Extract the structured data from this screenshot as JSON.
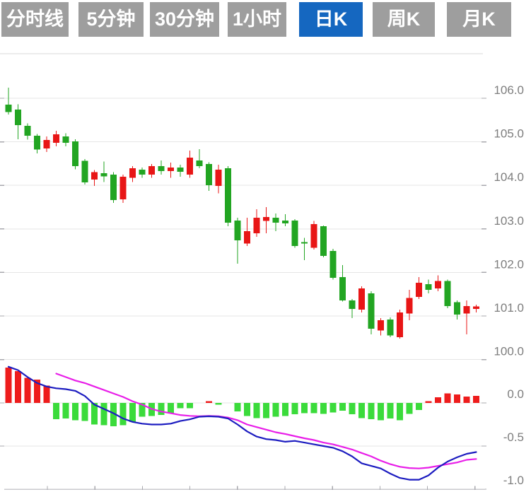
{
  "tabs": {
    "items": [
      {
        "name": "tab-timeline",
        "label": "分时线",
        "active": false
      },
      {
        "name": "tab-5min",
        "label": "5分钟",
        "active": false
      },
      {
        "name": "tab-30min",
        "label": "30分钟",
        "active": false
      },
      {
        "name": "tab-1hour",
        "label": "1小时",
        "active": false
      },
      {
        "name": "tab-daily-k",
        "label": "日K",
        "active": true
      },
      {
        "name": "tab-weekly-k",
        "label": "周K",
        "active": false
      },
      {
        "name": "tab-monthly-k",
        "label": "月K",
        "active": false
      }
    ],
    "colors": {
      "active_bg": "#1567c0",
      "inactive_bg": "#9e9e9e",
      "text": "#ffffff"
    }
  },
  "chart_data": {
    "type": "candlestick+macd",
    "title": "",
    "legend": "none",
    "grid": "horizontal-only",
    "price_pane": {
      "axis_side": "right",
      "tick_labels": [
        "106.0",
        "105.0",
        "104.0",
        "103.0",
        "102.0",
        "101.0",
        "100.0"
      ],
      "tick_values": [
        106.0,
        105.0,
        104.0,
        103.0,
        102.0,
        101.0,
        100.0
      ],
      "ylim": [
        100.0,
        106.0
      ]
    },
    "macd_pane": {
      "axis_side": "right",
      "tick_labels": [
        "0.0",
        "-0.5",
        "-1.0"
      ],
      "tick_values": [
        0.0,
        -0.5,
        -1.0
      ],
      "ylim": [
        -1.0,
        0.5
      ]
    },
    "candles_ohlc": [
      [
        105.85,
        106.24,
        105.63,
        105.68
      ],
      [
        105.74,
        105.86,
        105.06,
        105.38
      ],
      [
        105.37,
        105.42,
        105.05,
        105.14
      ],
      [
        105.14,
        105.18,
        104.73,
        104.82
      ],
      [
        104.85,
        105.12,
        104.77,
        105.04
      ],
      [
        104.98,
        105.25,
        104.9,
        105.17
      ],
      [
        105.12,
        105.2,
        104.9,
        104.98
      ],
      [
        105.01,
        105.06,
        104.37,
        104.44
      ],
      [
        104.56,
        104.6,
        104.02,
        104.07
      ],
      [
        104.13,
        104.35,
        103.99,
        104.3
      ],
      [
        104.28,
        104.55,
        104.08,
        104.21
      ],
      [
        104.25,
        104.3,
        103.6,
        103.66
      ],
      [
        103.68,
        104.25,
        103.6,
        104.2
      ],
      [
        104.17,
        104.44,
        104.08,
        104.39
      ],
      [
        104.36,
        104.41,
        104.17,
        104.25
      ],
      [
        104.25,
        104.49,
        104.17,
        104.44
      ],
      [
        104.44,
        104.57,
        104.25,
        104.33
      ],
      [
        104.33,
        104.52,
        104.17,
        104.41
      ],
      [
        104.41,
        104.47,
        104.2,
        104.31
      ],
      [
        104.25,
        104.8,
        104.17,
        104.64
      ],
      [
        104.57,
        104.83,
        104.39,
        104.44
      ],
      [
        104.49,
        104.53,
        103.87,
        104.0
      ],
      [
        103.99,
        104.47,
        103.82,
        104.36
      ],
      [
        104.39,
        104.44,
        103.06,
        103.14
      ],
      [
        103.19,
        103.26,
        102.2,
        102.74
      ],
      [
        102.66,
        103.26,
        102.61,
        102.95
      ],
      [
        102.9,
        103.45,
        102.82,
        103.26
      ],
      [
        103.18,
        103.5,
        102.9,
        103.27
      ],
      [
        103.26,
        103.35,
        102.95,
        103.14
      ],
      [
        103.19,
        103.34,
        103.06,
        103.13
      ],
      [
        103.19,
        103.22,
        102.57,
        102.61
      ],
      [
        102.7,
        102.79,
        102.28,
        102.66
      ],
      [
        102.57,
        103.18,
        102.53,
        103.11
      ],
      [
        103.06,
        103.08,
        102.35,
        102.38
      ],
      [
        102.49,
        102.54,
        101.84,
        101.88
      ],
      [
        101.89,
        102.17,
        101.33,
        101.36
      ],
      [
        101.36,
        101.39,
        100.95,
        101.16
      ],
      [
        101.15,
        101.68,
        101.08,
        101.63
      ],
      [
        101.52,
        101.57,
        100.58,
        100.71
      ],
      [
        100.67,
        100.95,
        100.55,
        100.9
      ],
      [
        100.92,
        100.97,
        100.51,
        100.55
      ],
      [
        100.51,
        101.15,
        100.48,
        101.08
      ],
      [
        101.06,
        101.6,
        100.9,
        101.41
      ],
      [
        101.44,
        101.89,
        101.39,
        101.76
      ],
      [
        101.73,
        101.84,
        101.52,
        101.6
      ],
      [
        101.63,
        101.93,
        101.57,
        101.8
      ],
      [
        101.8,
        101.84,
        101.18,
        101.23
      ],
      [
        101.32,
        101.36,
        100.92,
        101.03
      ],
      [
        101.06,
        101.36,
        100.58,
        101.23
      ],
      [
        101.16,
        101.26,
        101.08,
        101.22
      ]
    ],
    "macd_histogram": [
      0.41,
      0.37,
      0.29,
      0.27,
      0.2,
      -0.19,
      -0.18,
      -0.2,
      -0.21,
      -0.25,
      -0.26,
      -0.27,
      -0.26,
      -0.22,
      -0.16,
      -0.15,
      -0.14,
      -0.12,
      -0.06,
      -0.06,
      0,
      0.02,
      -0.02,
      0,
      -0.1,
      -0.15,
      -0.175,
      -0.175,
      -0.16,
      -0.15,
      -0.13,
      -0.12,
      -0.12,
      -0.125,
      -0.11,
      -0.09,
      -0.13,
      -0.175,
      -0.19,
      -0.2,
      -0.18,
      -0.2,
      -0.125,
      -0.08,
      0.02,
      0.065,
      0.11,
      0.1,
      0.075,
      0.08
    ],
    "dif_line": [
      0.42,
      0.38,
      0.3,
      0.23,
      0.19,
      0.17,
      0.16,
      0.14,
      0.08,
      -0.02,
      -0.07,
      -0.12,
      -0.18,
      -0.22,
      -0.24,
      -0.25,
      -0.25,
      -0.24,
      -0.21,
      -0.19,
      -0.16,
      -0.155,
      -0.16,
      -0.18,
      -0.25,
      -0.33,
      -0.39,
      -0.42,
      -0.43,
      -0.45,
      -0.44,
      -0.46,
      -0.48,
      -0.5,
      -0.52,
      -0.56,
      -0.62,
      -0.7,
      -0.73,
      -0.76,
      -0.82,
      -0.87,
      -0.89,
      -0.89,
      -0.84,
      -0.75,
      -0.68,
      -0.63,
      -0.59,
      -0.57
    ],
    "dea_line": [
      null,
      null,
      null,
      null,
      null,
      0.34,
      0.3,
      0.26,
      0.23,
      0.19,
      0.15,
      0.11,
      0.07,
      0.02,
      -0.02,
      -0.07,
      -0.1,
      -0.12,
      -0.14,
      -0.15,
      -0.155,
      -0.15,
      -0.155,
      -0.17,
      -0.2,
      -0.25,
      -0.28,
      -0.31,
      -0.34,
      -0.36,
      -0.385,
      -0.41,
      -0.43,
      -0.46,
      -0.48,
      -0.51,
      -0.54,
      -0.58,
      -0.62,
      -0.67,
      -0.71,
      -0.74,
      -0.755,
      -0.76,
      -0.75,
      -0.73,
      -0.71,
      -0.69,
      -0.66,
      -0.65
    ],
    "colors": {
      "candle_up": "#e81616",
      "candle_down": "#22a522",
      "hist_up": "#ee1c1c",
      "hist_down": "#3bdb3b",
      "dif": "#1c1cc0",
      "dea": "#e81ee8",
      "gridline": "#e6e6e6",
      "axis_line": "#c9c9ce",
      "axis_tick": "#a8a8ae",
      "axis_text": "#7d7d7d"
    }
  }
}
